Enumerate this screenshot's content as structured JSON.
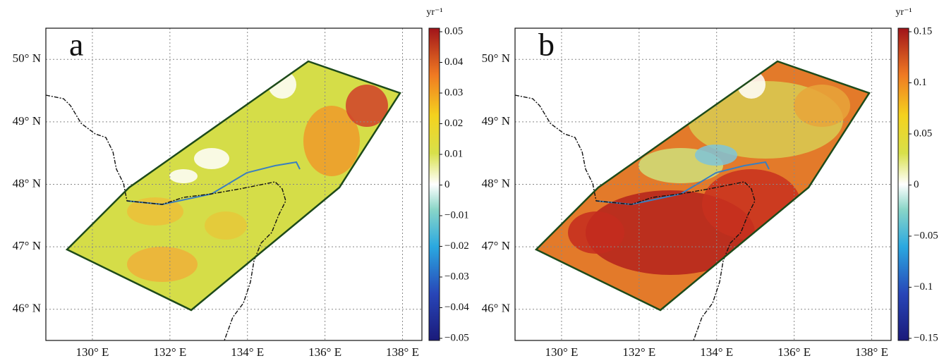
{
  "map": {
    "xlim": [
      128.8,
      138.5
    ],
    "ylim": [
      45.5,
      50.5
    ],
    "xticks": [
      {
        "value": 130,
        "label": "130° E"
      },
      {
        "value": 132,
        "label": "132° E"
      },
      {
        "value": 134,
        "label": "134° E"
      },
      {
        "value": 136,
        "label": "136° E"
      },
      {
        "value": 138,
        "label": "138° E"
      }
    ],
    "yticks": [
      {
        "value": 46,
        "label": "46° N"
      },
      {
        "value": 47,
        "label": "47° N"
      },
      {
        "value": 48,
        "label": "48° N"
      },
      {
        "value": 49,
        "label": "49° N"
      },
      {
        "value": 50,
        "label": "50° N"
      }
    ]
  },
  "panels": [
    {
      "label": "a",
      "unit": "yr⁻¹",
      "colorbar": {
        "lim": [
          -0.05,
          0.05
        ],
        "ticks": [
          {
            "value": -0.05,
            "label": "−0.05"
          },
          {
            "value": -0.04,
            "label": "−0.04"
          },
          {
            "value": -0.03,
            "label": "−0.03"
          },
          {
            "value": -0.02,
            "label": "−0.02"
          },
          {
            "value": -0.01,
            "label": "−0.01"
          },
          0,
          0.01,
          0.02,
          0.03,
          0.04,
          0.05
        ]
      }
    },
    {
      "label": "b",
      "unit": "yr⁻¹",
      "colorbar": {
        "lim": [
          -0.15,
          0.15
        ],
        "ticks": [
          {
            "value": -0.15,
            "label": "−0.15"
          },
          {
            "value": -0.1,
            "label": "−0.1"
          },
          {
            "value": -0.05,
            "label": "−0.05"
          },
          0,
          0.05,
          0.1,
          0.15
        ]
      }
    }
  ]
}
